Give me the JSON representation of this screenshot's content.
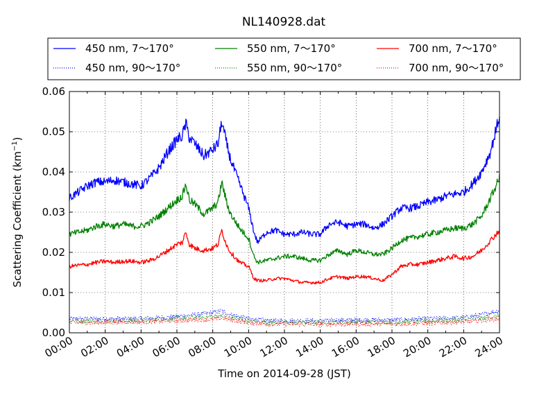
{
  "chart_data": {
    "type": "line",
    "title": "NL140928.dat",
    "xlabel": "Time on 2014-09-28 (JST)",
    "ylabel_main": "Scattering Coefficient (km",
    "ylabel_sup": "−1",
    "ylabel_close": ")",
    "xlim": [
      "00:00",
      "24:00"
    ],
    "ylim": [
      0,
      0.06
    ],
    "xticks": [
      "00:00",
      "02:00",
      "04:00",
      "06:00",
      "08:00",
      "10:00",
      "12:00",
      "14:00",
      "16:00",
      "18:00",
      "20:00",
      "22:00",
      "24:00"
    ],
    "yticks": [
      "0.00",
      "0.01",
      "0.02",
      "0.03",
      "0.04",
      "0.05",
      "0.06"
    ],
    "grid": true,
    "legend_position": "top, above plot",
    "series": [
      {
        "name": "450 nm, 7～170°",
        "color": "#0000ff",
        "style": "solid",
        "x_hours": [
          0,
          0.5,
          1,
          1.5,
          2,
          2.5,
          3,
          3.5,
          4,
          4.5,
          5,
          5.5,
          6,
          6.3,
          6.5,
          6.7,
          7,
          7.5,
          8,
          8.3,
          8.5,
          8.8,
          9,
          9.5,
          10,
          10.3,
          10.5,
          11,
          11.5,
          12,
          12.5,
          13,
          13.5,
          14,
          14.5,
          15,
          15.5,
          16,
          16.5,
          17,
          17.5,
          18,
          18.5,
          19,
          19.5,
          20,
          20.5,
          21,
          21.5,
          22,
          22.5,
          23,
          23.5,
          24
        ],
        "values": [
          0.0335,
          0.035,
          0.0365,
          0.0375,
          0.0375,
          0.038,
          0.0375,
          0.037,
          0.0365,
          0.0385,
          0.041,
          0.045,
          0.048,
          0.049,
          0.052,
          0.0485,
          0.047,
          0.044,
          0.0455,
          0.047,
          0.0525,
          0.0465,
          0.043,
          0.037,
          0.031,
          0.025,
          0.0225,
          0.025,
          0.0255,
          0.0245,
          0.0245,
          0.025,
          0.0245,
          0.0245,
          0.027,
          0.0275,
          0.0265,
          0.027,
          0.027,
          0.026,
          0.027,
          0.029,
          0.031,
          0.031,
          0.0315,
          0.0325,
          0.033,
          0.034,
          0.0345,
          0.035,
          0.037,
          0.04,
          0.045,
          0.054
        ]
      },
      {
        "name": "550 nm, 7～170°",
        "color": "#008000",
        "style": "solid",
        "x_hours": [
          0,
          0.5,
          1,
          1.5,
          2,
          2.5,
          3,
          3.5,
          4,
          4.5,
          5,
          5.5,
          6,
          6.3,
          6.5,
          6.7,
          7,
          7.5,
          8,
          8.3,
          8.5,
          8.8,
          9,
          9.5,
          10,
          10.3,
          10.5,
          11,
          11.5,
          12,
          12.5,
          13,
          13.5,
          14,
          14.5,
          15,
          15.5,
          16,
          16.5,
          17,
          17.5,
          18,
          18.5,
          19,
          19.5,
          20,
          20.5,
          21,
          21.5,
          22,
          22.5,
          23,
          23.5,
          24
        ],
        "values": [
          0.0245,
          0.025,
          0.0255,
          0.0265,
          0.027,
          0.0265,
          0.027,
          0.0265,
          0.0265,
          0.0275,
          0.029,
          0.031,
          0.033,
          0.034,
          0.037,
          0.033,
          0.032,
          0.0295,
          0.031,
          0.0325,
          0.0375,
          0.032,
          0.0295,
          0.026,
          0.0235,
          0.019,
          0.0175,
          0.018,
          0.0185,
          0.019,
          0.019,
          0.0185,
          0.018,
          0.018,
          0.0195,
          0.0205,
          0.0195,
          0.0205,
          0.02,
          0.0195,
          0.0195,
          0.021,
          0.023,
          0.0235,
          0.024,
          0.0245,
          0.025,
          0.0255,
          0.026,
          0.026,
          0.027,
          0.029,
          0.0335,
          0.0385
        ]
      },
      {
        "name": "700 nm, 7～170°",
        "color": "#ff0000",
        "style": "solid",
        "x_hours": [
          0,
          0.5,
          1,
          1.5,
          2,
          2.5,
          3,
          3.5,
          4,
          4.5,
          5,
          5.5,
          6,
          6.3,
          6.5,
          6.7,
          7,
          7.5,
          8,
          8.3,
          8.5,
          8.8,
          9,
          9.5,
          10,
          10.3,
          10.5,
          11,
          11.5,
          12,
          12.5,
          13,
          13.5,
          14,
          14.5,
          15,
          15.5,
          16,
          16.5,
          17,
          17.5,
          18,
          18.5,
          19,
          19.5,
          20,
          20.5,
          21,
          21.5,
          22,
          22.5,
          23,
          23.5,
          24
        ],
        "values": [
          0.0165,
          0.0168,
          0.017,
          0.0175,
          0.0178,
          0.0175,
          0.0178,
          0.0178,
          0.0175,
          0.018,
          0.019,
          0.0205,
          0.022,
          0.0225,
          0.025,
          0.022,
          0.021,
          0.0205,
          0.021,
          0.022,
          0.0255,
          0.0215,
          0.02,
          0.0175,
          0.0165,
          0.0135,
          0.013,
          0.013,
          0.0135,
          0.0135,
          0.013,
          0.0125,
          0.0125,
          0.0125,
          0.0135,
          0.014,
          0.0135,
          0.014,
          0.014,
          0.0135,
          0.013,
          0.0145,
          0.0165,
          0.017,
          0.017,
          0.0175,
          0.018,
          0.0185,
          0.019,
          0.0185,
          0.019,
          0.0205,
          0.023,
          0.0255
        ]
      },
      {
        "name": "450 nm, 90～170°",
        "color": "#0000ff",
        "style": "dotted",
        "x_hours": [
          0,
          2,
          4,
          6,
          7,
          8,
          8.5,
          9,
          10,
          11,
          12,
          14,
          16,
          18,
          20,
          22,
          23,
          24
        ],
        "values": [
          0.0035,
          0.0035,
          0.0035,
          0.004,
          0.0045,
          0.005,
          0.0055,
          0.0045,
          0.0035,
          0.003,
          0.003,
          0.003,
          0.0032,
          0.0032,
          0.0035,
          0.0038,
          0.0045,
          0.0055
        ]
      },
      {
        "name": "550 nm, 90～170°",
        "color": "#008000",
        "style": "dotted",
        "x_hours": [
          0,
          2,
          4,
          6,
          7,
          8,
          8.5,
          9,
          10,
          11,
          12,
          14,
          16,
          18,
          20,
          22,
          23,
          24
        ],
        "values": [
          0.003,
          0.003,
          0.003,
          0.0035,
          0.0038,
          0.004,
          0.0045,
          0.0038,
          0.003,
          0.0026,
          0.0026,
          0.0026,
          0.0027,
          0.0027,
          0.003,
          0.0032,
          0.0036,
          0.0042
        ]
      },
      {
        "name": "700 nm, 90～170°",
        "color": "#ff0000",
        "style": "dotted",
        "x_hours": [
          0,
          2,
          4,
          6,
          7,
          8,
          8.5,
          9,
          10,
          11,
          12,
          14,
          16,
          18,
          20,
          22,
          23,
          24
        ],
        "values": [
          0.0025,
          0.0026,
          0.0027,
          0.003,
          0.0032,
          0.0033,
          0.0037,
          0.0032,
          0.0025,
          0.0022,
          0.0021,
          0.0021,
          0.0022,
          0.0022,
          0.0024,
          0.0027,
          0.003,
          0.0035
        ]
      }
    ]
  }
}
